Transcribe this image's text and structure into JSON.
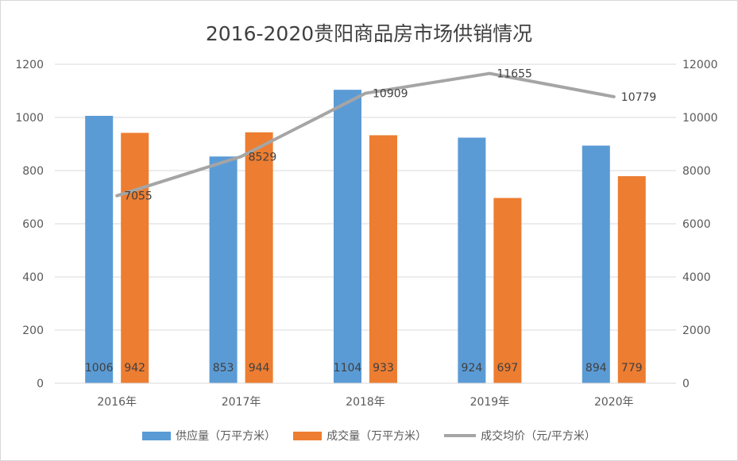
{
  "chart_data": {
    "type": "bar",
    "title": "2016-2020贵阳商品房市场供销情况",
    "categories": [
      "2016年",
      "2017年",
      "2018年",
      "2019年",
      "2020年"
    ],
    "series": [
      {
        "name": "供应量（万平方米）",
        "type": "bar",
        "axis": "left",
        "color": "#5b9bd5",
        "values": [
          1006,
          853,
          1104,
          924,
          894
        ]
      },
      {
        "name": "成交量（万平方米）",
        "type": "bar",
        "axis": "left",
        "color": "#ed7d31",
        "values": [
          942,
          944,
          933,
          697,
          779
        ]
      },
      {
        "name": "成交均价（元/平方米）",
        "type": "line",
        "axis": "right",
        "color": "#a5a5a5",
        "values": [
          7055,
          8529,
          10909,
          11655,
          10779
        ]
      }
    ],
    "y_left": {
      "min": 0,
      "max": 1200,
      "ticks": [
        "0",
        "200",
        "400",
        "600",
        "800",
        "1000",
        "1200"
      ]
    },
    "y_right": {
      "min": 0,
      "max": 12000,
      "ticks": [
        "0",
        "2000",
        "4000",
        "6000",
        "8000",
        "10000",
        "12000"
      ]
    },
    "grid": true,
    "legend": "bottom"
  }
}
